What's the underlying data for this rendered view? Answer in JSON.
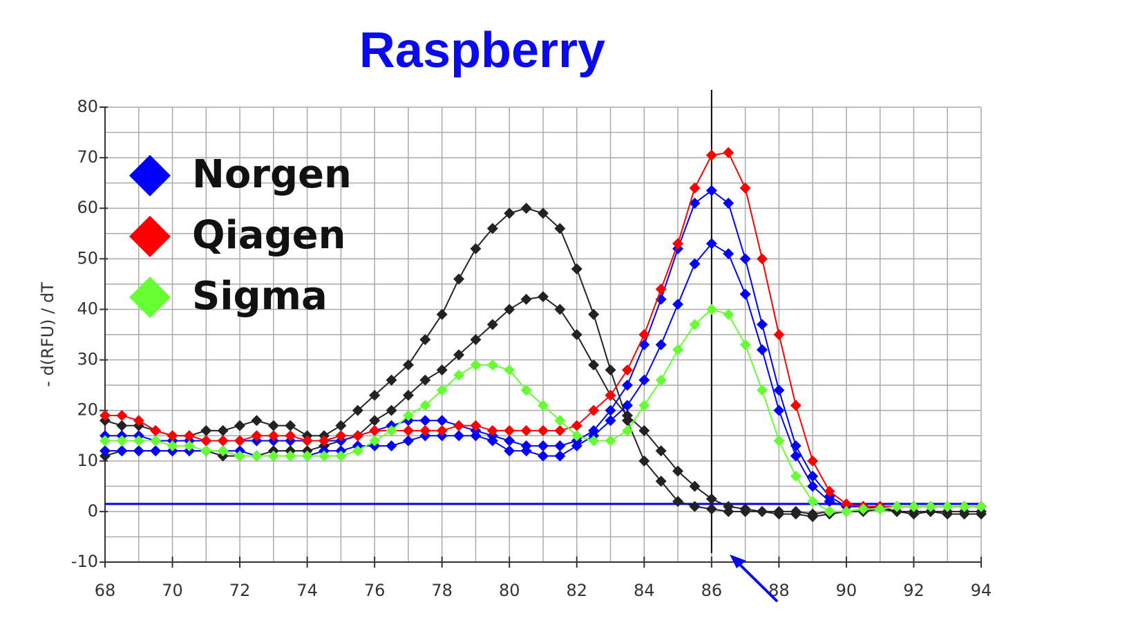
{
  "chart_data": {
    "type": "line",
    "title": "Raspberry",
    "y_label": "- d(RFU) / dT",
    "x": [
      68,
      68.5,
      69,
      69.5,
      70,
      70.5,
      71,
      71.5,
      72,
      72.5,
      73,
      73.5,
      74,
      74.5,
      75,
      75.5,
      76,
      76.5,
      77,
      77.5,
      78,
      78.5,
      79,
      79.5,
      80,
      80.5,
      81,
      81.5,
      82,
      82.5,
      83,
      83.5,
      84,
      84.5,
      85,
      85.5,
      86,
      86.5,
      87,
      87.5,
      88,
      88.5,
      89,
      89.5,
      90,
      90.5,
      91,
      91.5,
      92,
      92.5,
      93,
      93.5,
      94
    ],
    "series": [
      {
        "color": "#222222",
        "values": [
          18,
          17,
          17,
          16,
          15,
          15,
          16,
          16,
          17,
          18,
          17,
          17,
          15,
          15,
          17,
          20,
          23,
          26,
          29,
          34,
          39,
          46,
          52,
          56,
          59,
          60,
          59,
          56,
          48,
          39,
          28,
          18,
          10,
          6,
          2,
          1,
          0.5,
          0,
          0,
          0,
          -0.5,
          -0.5,
          -1,
          -0.5,
          0,
          0.5,
          1,
          0,
          -0.5,
          0,
          -0.5,
          -0.5,
          -0.5
        ]
      },
      {
        "color": "#222222",
        "values": [
          11,
          12,
          12,
          12,
          12,
          12,
          12,
          11,
          11,
          11,
          12,
          12,
          12,
          13,
          14,
          15,
          18,
          20,
          23,
          26,
          28,
          31,
          34,
          37,
          40,
          42,
          42.5,
          40,
          35,
          29,
          23,
          19,
          16,
          12,
          8,
          5,
          2.5,
          1,
          0.5,
          0,
          0,
          0,
          -0.5,
          0,
          0,
          0,
          0.5,
          0,
          0,
          0,
          0,
          0,
          0
        ]
      },
      {
        "color": "#0000ff",
        "values": [
          15,
          15,
          15,
          14,
          14,
          14,
          14,
          14,
          14,
          14,
          14,
          14,
          14,
          14,
          14,
          15,
          16,
          17,
          18,
          18,
          18,
          17,
          16,
          15,
          14,
          13,
          13,
          13,
          14,
          16,
          20,
          25,
          33,
          42,
          52,
          61,
          63.5,
          61,
          50,
          37,
          24,
          13,
          7,
          3,
          1,
          1,
          1,
          1,
          1,
          1,
          1,
          1,
          1
        ]
      },
      {
        "color": "#0000ff",
        "values": [
          12,
          12,
          12,
          12,
          12,
          12,
          12,
          12,
          12,
          11,
          11,
          11,
          11,
          12,
          12,
          13,
          13,
          13,
          14,
          15,
          15,
          15,
          15,
          14,
          12,
          12,
          11,
          11,
          13,
          15,
          18,
          21,
          26,
          33,
          41,
          49,
          53,
          51,
          43,
          32,
          20,
          11,
          5,
          2,
          1,
          1,
          1,
          1,
          1,
          1,
          1,
          1,
          1
        ]
      },
      {
        "color": "#ff0000",
        "values": [
          19,
          19,
          18,
          16,
          15,
          15,
          14,
          14,
          14,
          15,
          15,
          15,
          14,
          14,
          15,
          15,
          16,
          16,
          16,
          16,
          16,
          17,
          17,
          16,
          16,
          16,
          16,
          16,
          17,
          20,
          23,
          28,
          35,
          44,
          53,
          64,
          70.5,
          71,
          64,
          50,
          35,
          21,
          10,
          4,
          1.5,
          1,
          1,
          1,
          1,
          1,
          1,
          1,
          1
        ]
      },
      {
        "color": "#66ff33",
        "values": [
          14,
          14,
          14,
          14,
          13,
          13,
          12,
          12,
          11,
          11,
          11,
          11,
          11,
          11,
          11,
          12,
          14,
          16,
          19,
          21,
          24,
          27,
          29,
          29,
          28,
          24,
          21,
          18,
          15,
          14,
          14,
          16,
          21,
          26,
          32,
          37,
          40,
          39,
          33,
          24,
          14,
          7,
          2,
          0,
          0,
          0.5,
          0.5,
          1,
          1,
          1,
          1,
          1,
          1
        ]
      }
    ],
    "legend": [
      {
        "name": "Norgen",
        "color": "#0000ff"
      },
      {
        "name": "Qiagen",
        "color": "#ff0000"
      },
      {
        "name": "Sigma",
        "color": "#66ff33"
      }
    ],
    "threshold": 1.5,
    "threshold_color": "#0000ee",
    "vline": 86,
    "xlim": [
      68,
      94
    ],
    "xticks": [
      68,
      70,
      72,
      74,
      76,
      78,
      80,
      82,
      84,
      86,
      88,
      90,
      92,
      94
    ],
    "ylim": [
      -10,
      80
    ],
    "yticks": [
      -10,
      0,
      10,
      20,
      30,
      40,
      50,
      60,
      70,
      80
    ],
    "grid": true
  }
}
